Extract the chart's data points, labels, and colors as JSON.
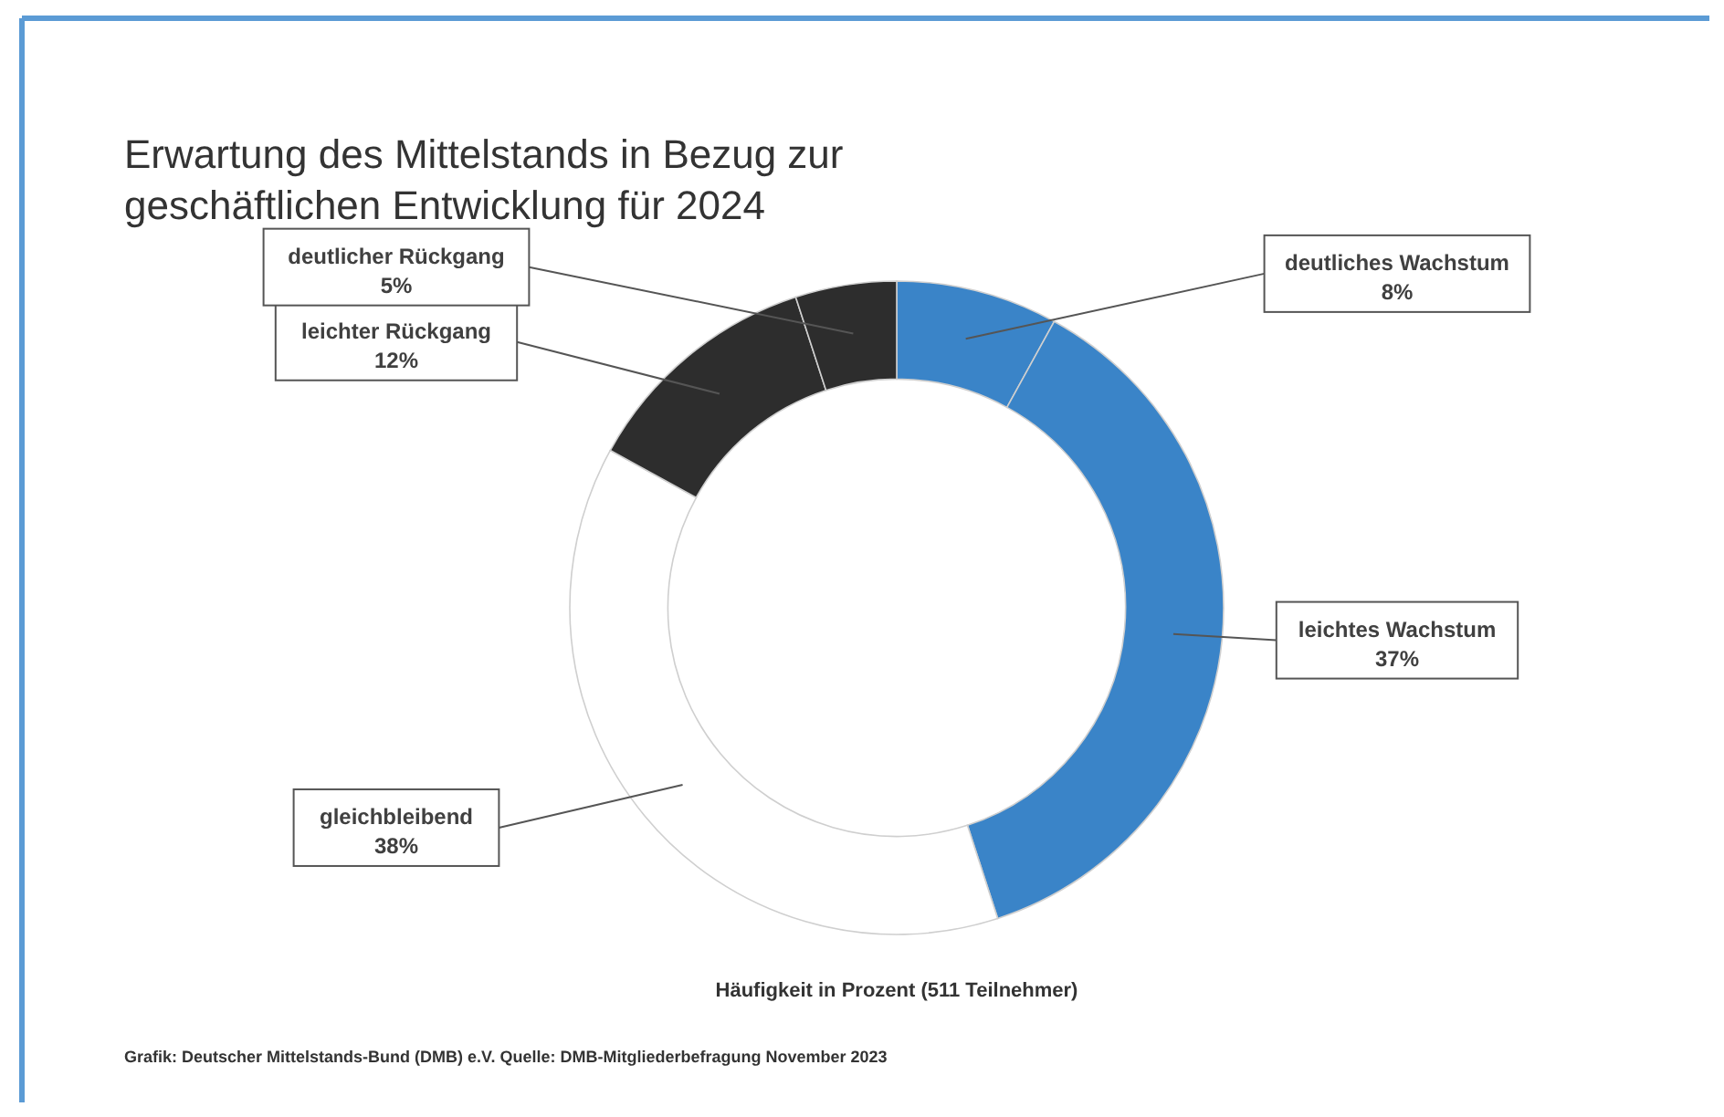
{
  "chart_data": {
    "type": "donut",
    "title": "Erwartung des Mittelstands in Bezug zur geschäftlichen Entwicklung für 2024",
    "categories": [
      "deutliches Wachstum",
      "leichtes Wachstum",
      "gleichbleibend",
      "leichter Rückgang",
      "deutlicher Rückgang"
    ],
    "values": [
      8,
      37,
      38,
      12,
      5
    ],
    "value_labels": [
      "8%",
      "37%",
      "38%",
      "12%",
      "5%"
    ],
    "colors": [
      "#3a84c8",
      "#3a84c8",
      "#ffffff",
      "#2d2d2d",
      "#2d2d2d"
    ],
    "annotations": [
      "Häufigkeit in Prozent (511 Teilnehmer)",
      "Grafik: Deutscher Mittelstands-Bund (DMB) e.V. Quelle: DMB-Mitgliederbefragung November 2023"
    ]
  }
}
